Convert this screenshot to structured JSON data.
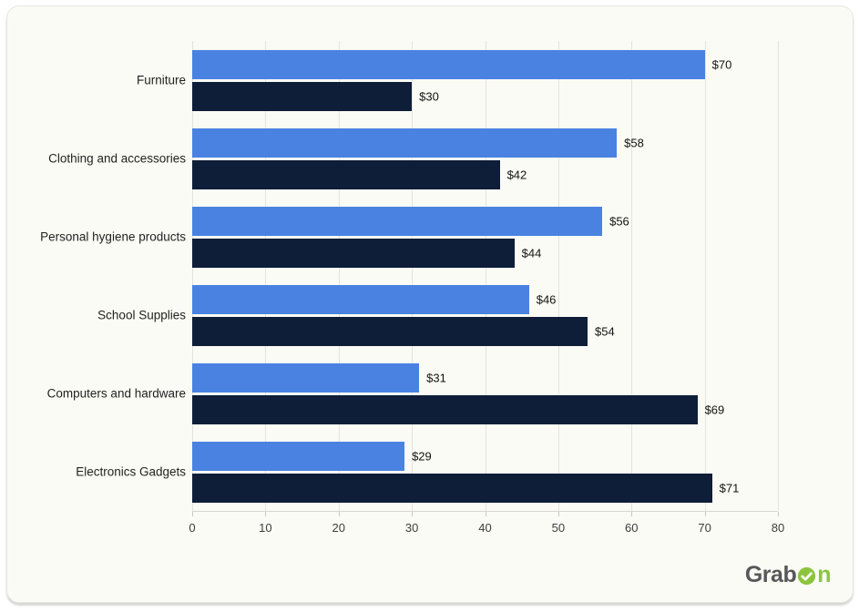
{
  "chart_data": {
    "type": "bar",
    "orientation": "horizontal",
    "categories": [
      "Furniture",
      "Clothing and accessories",
      "Personal hygiene products",
      "School Supplies",
      "Computers and hardware",
      "Electronics Gadgets"
    ],
    "series": [
      {
        "color": "#4a82e2",
        "values": [
          70,
          58,
          56,
          46,
          31,
          29
        ],
        "labels": [
          "$70",
          "$58",
          "$56",
          "$46",
          "$31",
          "$29"
        ]
      },
      {
        "color": "#0e1d38",
        "values": [
          30,
          42,
          44,
          54,
          69,
          71
        ],
        "labels": [
          "$30",
          "$42",
          "$44",
          "$54",
          "$69",
          "$71"
        ]
      }
    ],
    "xlim": [
      0,
      80
    ],
    "xticks": [
      0,
      10,
      20,
      30,
      40,
      50,
      60,
      70,
      80
    ],
    "grid": "vertical",
    "legend": "none",
    "value_prefix": "$"
  },
  "colors": {
    "card_background": "#fbfbf5",
    "gridline": "#e4e4dd",
    "axis_line": "#d7d7d0",
    "bar_blue": "#4a82e2",
    "bar_navy": "#0e1d38",
    "label_text": "#1f1f1f",
    "logo_gray": "#57585a",
    "logo_green": "#8bc53e"
  },
  "branding": {
    "logo_text": "GrabOn",
    "logo_part1": "Grab",
    "logo_part2": "n"
  }
}
